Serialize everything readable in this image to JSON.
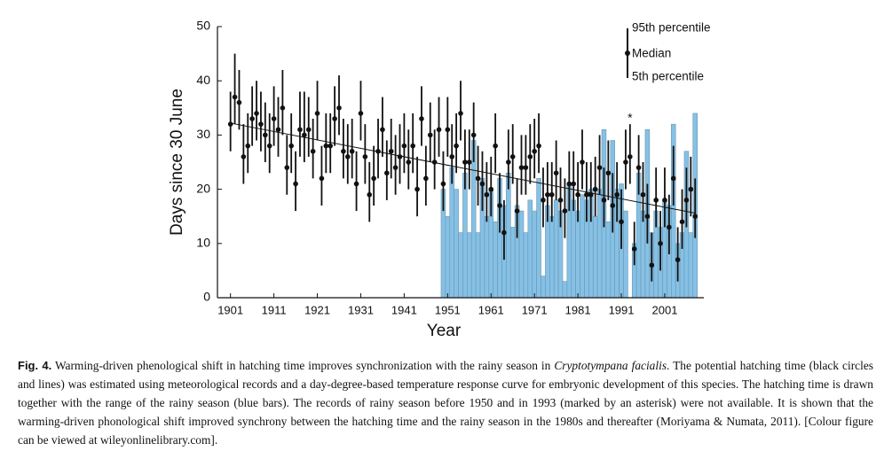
{
  "chart_data": {
    "type": "errorbar",
    "y_label": "Days since 30 June",
    "x_label": "Year",
    "xlim": [
      1898,
      2010
    ],
    "xticks": [
      1901,
      1911,
      1921,
      1931,
      1941,
      1951,
      1961,
      1971,
      1981,
      1991,
      2001
    ],
    "ylim": [
      0,
      50
    ],
    "yticks": [
      0,
      10,
      20,
      30,
      40,
      50
    ],
    "x": [
      1901,
      1902,
      1903,
      1904,
      1905,
      1906,
      1907,
      1908,
      1909,
      1910,
      1911,
      1912,
      1913,
      1914,
      1915,
      1916,
      1917,
      1918,
      1919,
      1920,
      1921,
      1922,
      1923,
      1924,
      1925,
      1926,
      1927,
      1928,
      1929,
      1930,
      1931,
      1932,
      1933,
      1934,
      1935,
      1936,
      1937,
      1938,
      1939,
      1940,
      1941,
      1942,
      1943,
      1944,
      1945,
      1946,
      1947,
      1948,
      1949,
      1950,
      1951,
      1952,
      1953,
      1954,
      1955,
      1956,
      1957,
      1958,
      1959,
      1960,
      1961,
      1962,
      1963,
      1964,
      1965,
      1966,
      1967,
      1968,
      1969,
      1970,
      1971,
      1972,
      1973,
      1974,
      1975,
      1976,
      1977,
      1978,
      1979,
      1980,
      1981,
      1982,
      1983,
      1984,
      1985,
      1986,
      1987,
      1988,
      1989,
      1990,
      1991,
      1992,
      1993,
      1994,
      1995,
      1996,
      1997,
      1998,
      1999,
      2000,
      2001,
      2002,
      2003,
      2004,
      2005,
      2006,
      2007,
      2008
    ],
    "series": [
      {
        "name": "Median",
        "color": "#111111",
        "values": [
          32,
          37,
          36,
          26,
          28,
          33,
          34,
          32,
          30,
          28,
          33,
          31,
          35,
          24,
          28,
          21,
          31,
          30,
          31,
          27,
          34,
          22,
          28,
          28,
          33,
          35,
          27,
          26,
          27,
          21,
          34,
          26,
          19,
          22,
          27,
          31,
          23,
          27,
          24,
          26,
          28,
          25,
          28,
          20,
          33,
          22,
          30,
          25,
          31,
          21,
          31,
          26,
          28,
          34,
          25,
          25,
          30,
          22,
          21,
          19,
          20,
          28,
          17,
          12,
          25,
          26,
          16,
          24,
          24,
          26,
          27,
          28,
          18,
          19,
          19,
          23,
          18,
          16,
          21,
          21,
          19,
          25,
          19,
          19,
          20,
          24,
          18,
          23,
          17,
          19,
          14,
          25,
          26,
          9,
          24,
          19,
          15,
          6,
          18,
          10,
          18,
          13,
          22,
          7,
          14,
          18,
          20,
          15
        ]
      },
      {
        "name": "95th percentile",
        "values": [
          38,
          45,
          42,
          32,
          34,
          39,
          40,
          38,
          36,
          34,
          39,
          37,
          42,
          30,
          34,
          27,
          38,
          38,
          37,
          33,
          40,
          28,
          34,
          34,
          39,
          41,
          33,
          32,
          33,
          27,
          40,
          32,
          25,
          28,
          33,
          37,
          29,
          33,
          30,
          32,
          34,
          31,
          34,
          26,
          39,
          28,
          36,
          31,
          37,
          27,
          37,
          32,
          34,
          40,
          31,
          31,
          36,
          28,
          27,
          25,
          26,
          34,
          23,
          18,
          31,
          32,
          22,
          30,
          30,
          32,
          33,
          34,
          24,
          25,
          25,
          29,
          24,
          22,
          27,
          27,
          25,
          31,
          25,
          25,
          26,
          30,
          24,
          29,
          23,
          25,
          20,
          31,
          32,
          14,
          30,
          25,
          21,
          12,
          24,
          16,
          24,
          19,
          28,
          13,
          20,
          24,
          26,
          22
        ]
      },
      {
        "name": "5th percentile",
        "values": [
          27,
          32,
          31,
          21,
          23,
          28,
          29,
          27,
          25,
          23,
          28,
          26,
          30,
          19,
          23,
          16,
          26,
          25,
          26,
          22,
          29,
          17,
          23,
          23,
          28,
          30,
          22,
          21,
          22,
          16,
          29,
          21,
          14,
          17,
          22,
          26,
          18,
          22,
          19,
          21,
          23,
          20,
          23,
          15,
          28,
          17,
          25,
          20,
          26,
          16,
          26,
          21,
          23,
          29,
          20,
          20,
          25,
          17,
          16,
          14,
          15,
          23,
          12,
          7,
          20,
          21,
          11,
          19,
          19,
          21,
          22,
          23,
          13,
          14,
          14,
          18,
          13,
          11,
          16,
          16,
          14,
          20,
          14,
          14,
          15,
          19,
          13,
          18,
          12,
          14,
          9,
          20,
          21,
          6,
          19,
          14,
          10,
          3,
          13,
          5,
          13,
          8,
          17,
          3,
          9,
          13,
          15,
          11
        ]
      }
    ],
    "bars": {
      "color": "#85c1e6",
      "x": [
        1950,
        1951,
        1952,
        1953,
        1954,
        1955,
        1956,
        1957,
        1958,
        1959,
        1960,
        1961,
        1962,
        1963,
        1964,
        1965,
        1966,
        1967,
        1968,
        1969,
        1970,
        1971,
        1972,
        1973,
        1974,
        1975,
        1976,
        1977,
        1978,
        1979,
        1980,
        1981,
        1982,
        1983,
        1984,
        1985,
        1986,
        1987,
        1988,
        1989,
        1990,
        1991,
        1992,
        1993,
        1994,
        1995,
        1996,
        1997,
        1998,
        1999,
        2000,
        2001,
        2002,
        2003,
        2004,
        2005,
        2006,
        2007,
        2008
      ],
      "values": [
        20,
        15,
        24,
        20,
        12,
        23,
        12,
        29,
        12,
        22,
        15,
        20,
        14,
        22,
        17,
        23,
        13,
        17,
        16,
        12,
        18,
        16,
        22,
        4,
        17,
        15,
        18,
        16,
        3,
        21,
        18,
        16,
        19,
        18,
        20,
        15,
        20,
        31,
        14,
        29,
        20,
        21,
        16,
        null,
        10,
        23,
        16,
        31,
        12,
        16,
        13,
        18,
        17,
        32,
        10,
        12,
        27,
        12,
        34
      ]
    },
    "trend": {
      "x": [
        1901,
        2008
      ],
      "values": [
        32.2,
        15.6
      ]
    },
    "annotation": {
      "text": "*",
      "x": 1993,
      "y": 33
    }
  },
  "caption": {
    "label": "Fig. 4.",
    "text_before": "Warming-driven phenological shift in hatching time improves synchronization with the rainy season in",
    "italic": "Cryptotympana facialis",
    "text_after": ". The potential hatching time (black circles and lines) was estimated using meteorological records and a day-degree-based temperature response curve for embryonic development of this species. The hatching time is drawn together with the range of the rainy season (blue bars). The records of rainy season before 1950 and in 1993 (marked by an asterisk) were not available. It is shown that the warming-driven phonological shift improved synchrony between the hatching time and the rainy season in the 1980s and thereafter (Moriyama & Numata, 2011). [Colour figure can be viewed at wileyonlinelibrary.com]."
  }
}
